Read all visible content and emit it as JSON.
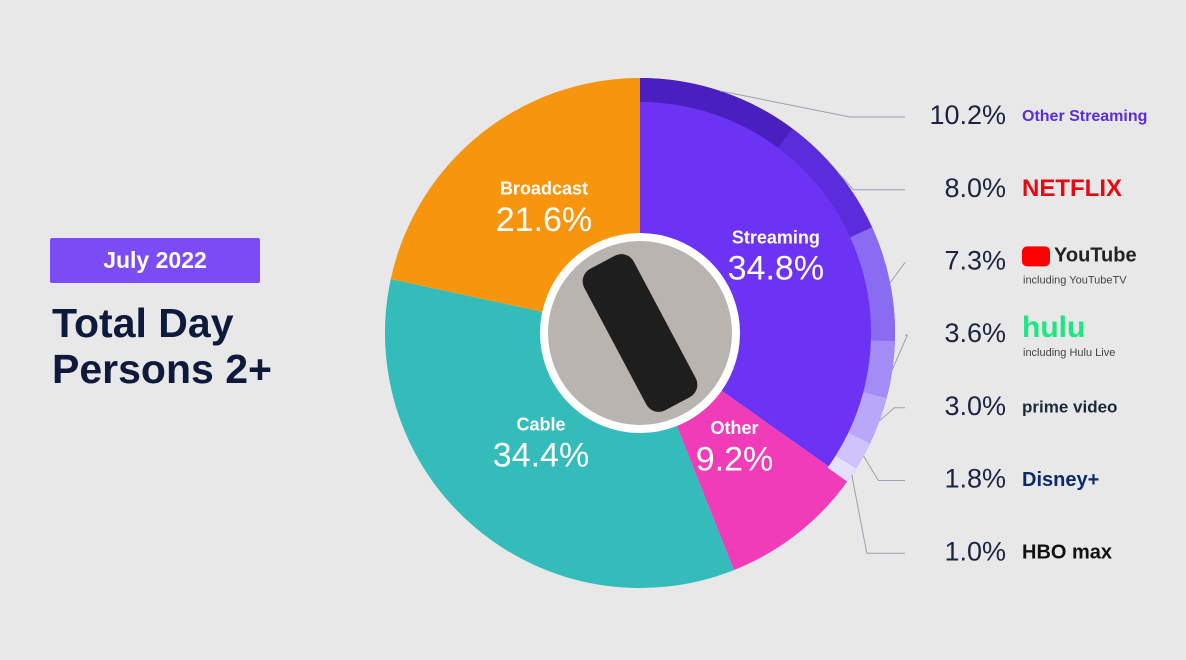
{
  "chart_data": [
    {
      "type": "pie",
      "subtitle": "July 2022",
      "title": "Total Day Persons 2+",
      "categories": [
        "Streaming",
        "Other",
        "Cable",
        "Broadcast"
      ],
      "values": [
        34.8,
        9.2,
        34.4,
        21.6
      ],
      "value_labels": [
        "34.8%",
        "9.2%",
        "34.4%",
        "21.6%"
      ],
      "colors": [
        "#6c33f5",
        "#f03cb8",
        "#33bcb9",
        "#f7960e"
      ]
    },
    {
      "type": "ring",
      "categories": [
        "Other Streaming",
        "NETFLIX",
        "YouTube",
        "hulu",
        "prime video",
        "Disney+",
        "HBO max"
      ],
      "sublabels": [
        null,
        null,
        "including YouTubeTV",
        "including Hulu Live",
        null,
        null,
        null
      ],
      "values": [
        10.2,
        8.0,
        7.3,
        3.6,
        3.0,
        1.8,
        1.0
      ],
      "value_labels": [
        "10.2%",
        "8.0%",
        "7.3%",
        "3.6%",
        "3.0%",
        "1.8%",
        "1.0%"
      ],
      "colors": [
        "#4a1fbf",
        "#5a2cdc",
        "#8a6cf2",
        "#a48cf6",
        "#b9a8f9",
        "#cfc3fb",
        "#e6e0fd"
      ]
    }
  ]
}
